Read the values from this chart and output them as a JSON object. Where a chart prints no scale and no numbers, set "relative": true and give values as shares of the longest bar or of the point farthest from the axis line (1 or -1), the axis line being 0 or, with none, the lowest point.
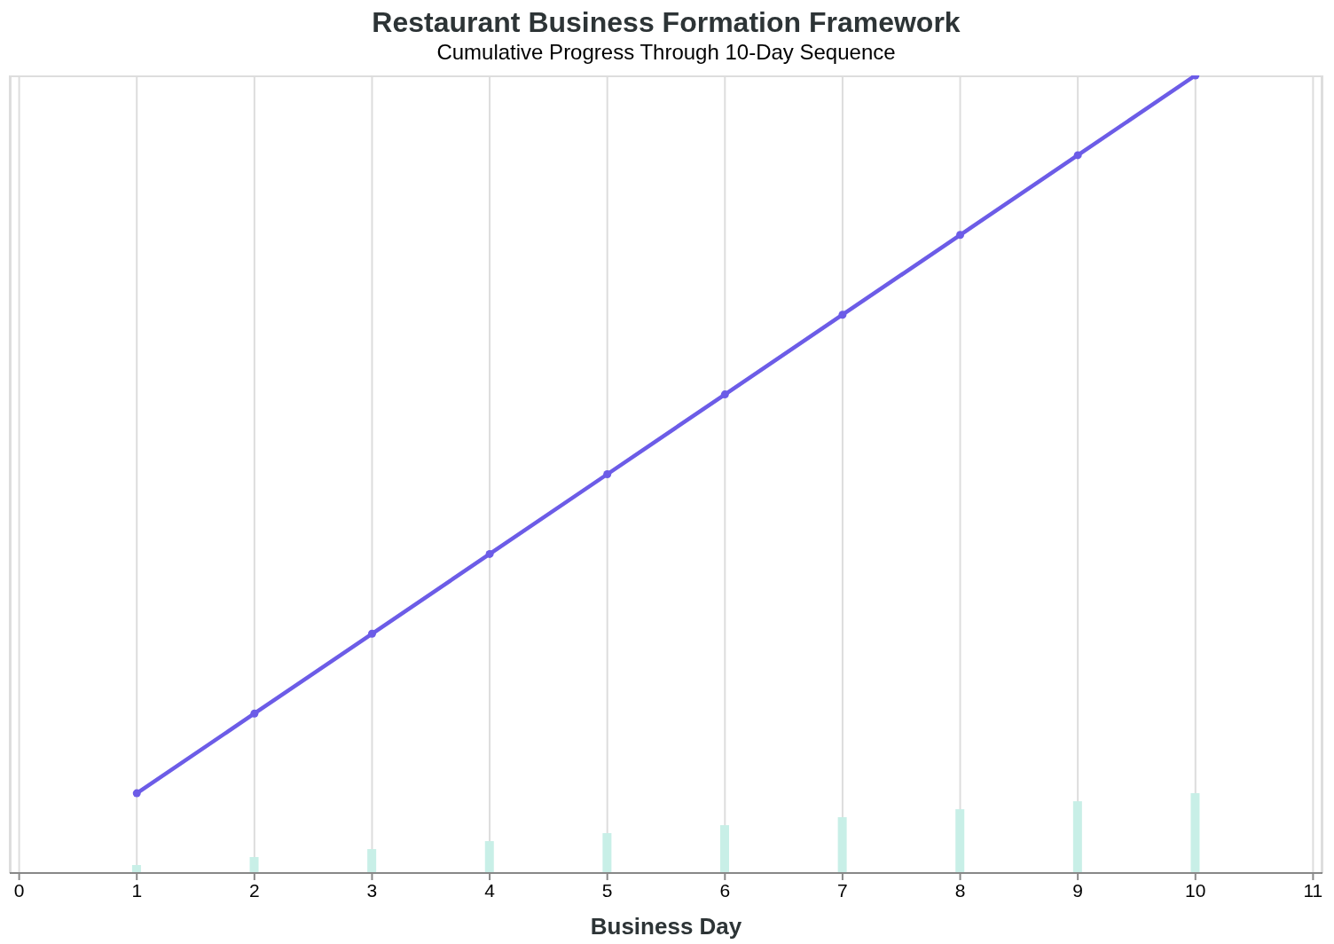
{
  "chart_data": {
    "type": "line",
    "title": "Restaurant Business Formation Framework",
    "subtitle": "Cumulative Progress Through 10-Day Sequence",
    "xlabel": "Business Day",
    "x": [
      1,
      2,
      3,
      4,
      5,
      6,
      7,
      8,
      9,
      10
    ],
    "relative": true,
    "xlim": [
      -0.08,
      11.08
    ],
    "xticks": [
      0,
      1,
      2,
      3,
      4,
      5,
      6,
      7,
      8,
      9,
      10,
      11
    ],
    "grid": "x",
    "marker": "circle",
    "line_style": "solid",
    "series": [
      {
        "type": "bar",
        "color": "#c8efe7",
        "values": [
          0.01,
          0.02,
          0.03,
          0.04,
          0.05,
          0.06,
          0.07,
          0.08,
          0.09,
          0.1
        ]
      },
      {
        "color": "#6c5ce7",
        "values": [
          0.1,
          0.2,
          0.3,
          0.4,
          0.5,
          0.6,
          0.7,
          0.8,
          0.9,
          1.0
        ]
      }
    ]
  }
}
